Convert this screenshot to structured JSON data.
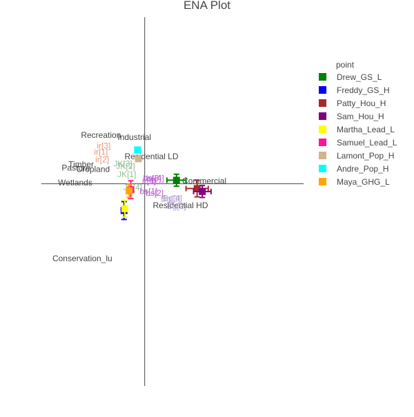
{
  "chart_data": {
    "type": "scatter",
    "title": "ENA Plot",
    "xlim": [
      -2.6,
      4.0
    ],
    "ylim": [
      -3.4,
      2.8
    ],
    "legend": {
      "title": "point",
      "placement": "right",
      "entries": [
        {
          "name": "Drew_GS_L",
          "color": "#008000"
        },
        {
          "name": "Freddy_GS_H",
          "color": "#0000ff"
        },
        {
          "name": "Patty_Hou_H",
          "color": "#a52a2a"
        },
        {
          "name": "Sam_Hou_H",
          "color": "#800080"
        },
        {
          "name": "Martha_Lead_L",
          "color": "#ffff00"
        },
        {
          "name": "Samuel_Lead_L",
          "color": "#ff1493"
        },
        {
          "name": "Lamont_Pop_H",
          "color": "#d2b48c"
        },
        {
          "name": "Andre_Pop_H",
          "color": "#00ffff"
        },
        {
          "name": "Maya_GHG_L",
          "color": "#ffa500"
        }
      ]
    },
    "series": [
      {
        "name": "Drew_GS_L",
        "color": "#008000",
        "x": 0.8,
        "y": 0.06,
        "xerr": 0.24,
        "yerr": 0.1
      },
      {
        "name": "Freddy_GS_H",
        "color": "#0000ff",
        "x": -0.52,
        "y": -0.45,
        "xerr": 0.0,
        "yerr": 0.15
      },
      {
        "name": "Patty_Hou_H",
        "color": "#a52a2a",
        "x": 1.32,
        "y": -0.08,
        "xerr": 0.28,
        "yerr": 0.14
      },
      {
        "name": "Sam_Hou_H",
        "color": "#800080",
        "x": 1.45,
        "y": -0.13,
        "xerr": 0.22,
        "yerr": 0.1
      },
      {
        "name": "Martha_Lead_L",
        "color": "#ffff00",
        "x": -0.5,
        "y": -0.42,
        "xerr": 0.0,
        "yerr": 0.14
      },
      {
        "name": "Samuel_Lead_L",
        "color": "#ff1493",
        "x": -0.35,
        "y": -0.1,
        "xerr": 0.04,
        "yerr": 0.15
      },
      {
        "name": "Lamont_Pop_H",
        "color": "#d2b48c",
        "x": -0.16,
        "y": 0.42,
        "xerr": 0.0,
        "yerr": 0.0
      },
      {
        "name": "Andre_Pop_H",
        "color": "#00ffff",
        "x": -0.18,
        "y": 0.57,
        "xerr": 0.0,
        "yerr": 0.0
      },
      {
        "name": "Maya_GHG_L",
        "color": "#ffa500",
        "x": -0.39,
        "y": -0.12,
        "xerr": 0.05,
        "yerr": 0.11
      }
    ],
    "nodes": [
      {
        "label": "Recreation",
        "x": -1.1,
        "y": 0.77,
        "color": "#444444"
      },
      {
        "label": "Industrial",
        "x": -0.26,
        "y": 0.74,
        "color": "#444444"
      },
      {
        "label": "Residential LD",
        "x": 0.17,
        "y": 0.41,
        "color": "#444444"
      },
      {
        "label": "Timber",
        "x": -1.6,
        "y": 0.28,
        "color": "#444444"
      },
      {
        "label": "Pasture",
        "x": -1.73,
        "y": 0.22,
        "color": "#444444"
      },
      {
        "label": "Cropland",
        "x": -1.3,
        "y": 0.2,
        "color": "#444444"
      },
      {
        "label": "Wetlands",
        "x": -1.75,
        "y": -0.03,
        "color": "#444444"
      },
      {
        "label": "Commercial",
        "x": 1.5,
        "y": 0.0,
        "color": "#444444"
      },
      {
        "label": "Residential HD",
        "x": 0.9,
        "y": -0.41,
        "color": "#444444"
      },
      {
        "label": "Conservation_lu",
        "x": -1.57,
        "y": -1.3,
        "color": "#444444"
      }
    ],
    "annotations": [
      {
        "label": "ir[3]",
        "x": -1.03,
        "y": 0.59,
        "color": "#e9967a"
      },
      {
        "label": "ir[1]",
        "x": -1.1,
        "y": 0.49,
        "color": "#e9967a"
      },
      {
        "label": "ir[2]",
        "x": -1.07,
        "y": 0.36,
        "color": "#e9967a"
      },
      {
        "label": "JK[3]",
        "x": -0.55,
        "y": 0.29,
        "color": "#8fbc8f"
      },
      {
        "label": "JK[2]",
        "x": -0.48,
        "y": 0.25,
        "color": "#8fbc8f"
      },
      {
        "label": "JK[1]",
        "x": -0.45,
        "y": 0.11,
        "color": "#8fbc8f"
      },
      {
        "label": "JK[4]",
        "x": -0.3,
        "y": -0.11,
        "color": "#8fbc8f"
      },
      {
        "label": "bs[3]",
        "x": 0.19,
        "y": 0.05,
        "color": "#ba55d3"
      },
      {
        "label": "bs[4]",
        "x": 0.26,
        "y": 0.05,
        "color": "#ba55d3"
      },
      {
        "label": "ir[4]",
        "x": 0.11,
        "y": 0.0,
        "color": "#ba55d3"
      },
      {
        "label": "bs[1]",
        "x": 0.1,
        "y": -0.17,
        "color": "#ba55d3"
      },
      {
        "label": "bs[2]",
        "x": 0.25,
        "y": -0.2,
        "color": "#ba55d3"
      },
      {
        "label": "Bg[4]",
        "x": 0.7,
        "y": -0.29,
        "color": "#b0a0d0"
      },
      {
        "label": "Bg[3]",
        "x": 0.65,
        "y": -0.3,
        "color": "#b0a0d0"
      },
      {
        "label": "Bg[2]",
        "x": 0.8,
        "y": -0.42,
        "color": "#b0a0d0"
      }
    ],
    "grid": false
  }
}
